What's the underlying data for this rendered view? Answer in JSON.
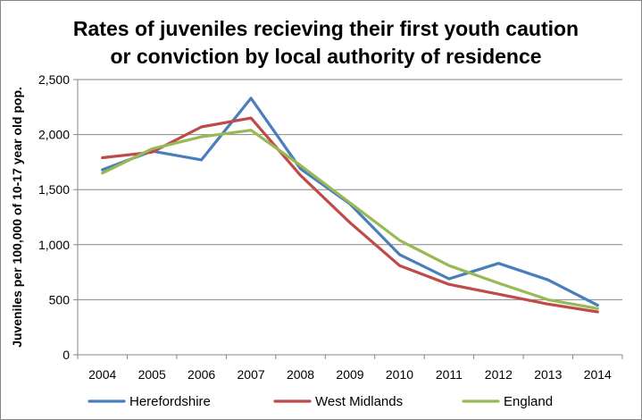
{
  "chart_data": {
    "type": "line",
    "title": [
      "Rates of juveniles recieving their first youth caution",
      "or conviction by local authority of residence"
    ],
    "ylabel": "Juveniles per 100,000 of 10-17 year old pop.",
    "xlabel": "",
    "x": [
      "2004",
      "2005",
      "2006",
      "2007",
      "2008",
      "2009",
      "2010",
      "2011",
      "2012",
      "2013",
      "2014"
    ],
    "ylim": [
      0,
      2500
    ],
    "yticks": [
      0,
      500,
      1000,
      1500,
      2000,
      2500
    ],
    "ytick_labels": [
      "0",
      "500",
      "1,000",
      "1,500",
      "2,000",
      "2,500"
    ],
    "grid": "horizontal",
    "legend_position": "bottom",
    "series": [
      {
        "name": "Herefordshire",
        "color": "#4a7ebb",
        "values": [
          1680,
          1850,
          1770,
          2330,
          1690,
          1370,
          910,
          690,
          830,
          680,
          450
        ]
      },
      {
        "name": "West Midlands",
        "color": "#be4b48",
        "values": [
          1790,
          1840,
          2070,
          2150,
          1630,
          1200,
          810,
          640,
          550,
          460,
          390
        ]
      },
      {
        "name": "England",
        "color": "#98b954",
        "values": [
          1650,
          1870,
          1980,
          2040,
          1720,
          1380,
          1040,
          810,
          650,
          500,
          420
        ]
      }
    ]
  }
}
